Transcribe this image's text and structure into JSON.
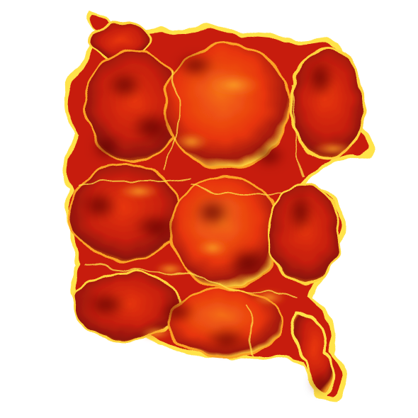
{
  "scene": {
    "subject": "volumetric-fire-render",
    "background_color": "#ffffff",
    "palette": {
      "deep": "#5e0606",
      "dark_red": "#8e1508",
      "red": "#c71f0a",
      "bright_red": "#e8350e",
      "orange": "#f46c16",
      "amber": "#fba326",
      "yellow": "#ffe34a",
      "pale_yellow": "#fff6a2"
    },
    "blobs": [
      {
        "name": "top-left-lobe",
        "shade": "red"
      },
      {
        "name": "upper-left-bulge",
        "shade": "bright_red"
      },
      {
        "name": "upper-center-bulge",
        "shade": "orange"
      },
      {
        "name": "upper-right-bulge",
        "shade": "bright_red"
      },
      {
        "name": "left-middle-bulge",
        "shade": "red"
      },
      {
        "name": "center-bulge",
        "shade": "bright_red"
      },
      {
        "name": "right-middle-bulge",
        "shade": "red"
      },
      {
        "name": "lower-left-bulge",
        "shade": "red"
      },
      {
        "name": "lower-center-bulge",
        "shade": "bright_red"
      },
      {
        "name": "lower-right-tail",
        "shade": "red"
      }
    ]
  }
}
